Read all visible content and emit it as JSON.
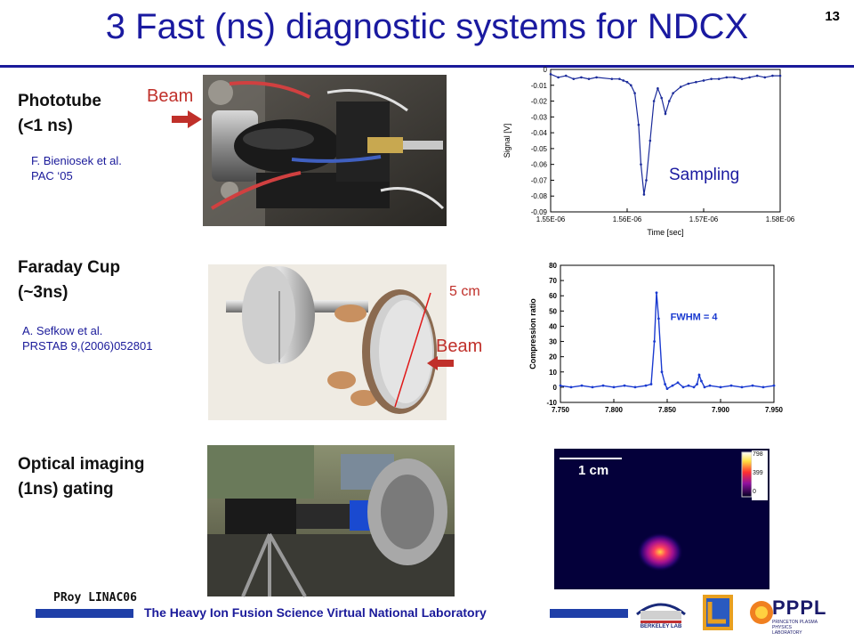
{
  "slide": {
    "title": "3 Fast (ns) diagnostic systems for NDCX",
    "page_number": "13"
  },
  "sections": {
    "phototube": {
      "label_line1": "Phototube",
      "label_line2": "(<1 ns)",
      "citation_line1": "F. Bieniosek et al.",
      "citation_line2": "PAC ‘05",
      "beam_label": "Beam",
      "sampling_label": "Sampling"
    },
    "faraday": {
      "label_line1": "Faraday Cup",
      "label_line2": "(~3ns)",
      "citation_line1": "A. Sefkow et al.",
      "citation_line2": "PRSTAB 9,(2006)052801",
      "size_label": "5 cm",
      "beam_label": "Beam"
    },
    "optical": {
      "label_line1": "Optical imaging",
      "label_line2": "(1ns) gating",
      "scale_label": "1 cm",
      "colorbar_max": "798",
      "colorbar_mid": "399",
      "colorbar_min": "0"
    }
  },
  "footer": {
    "author": "PRoy LINAC06",
    "lab_text": "The Heavy Ion Fusion Science Virtual National Laboratory",
    "logo1": "BERKELEY LAB",
    "logo3_big": "PPPL",
    "logo3_small": "PRINCETON PLASMA PHYSICS LABORATORY"
  },
  "chart_data": [
    {
      "type": "line",
      "title": "",
      "xlabel": "Time [sec]",
      "ylabel": "Signal [V]",
      "xlim": [
        1.55e-06,
        1.58e-06
      ],
      "ylim": [
        -0.09,
        0
      ],
      "xticks": [
        "1.55E-06",
        "1.56E-06",
        "1.57E-06",
        "1.58E-06"
      ],
      "yticks": [
        "0",
        "-0.01",
        "-0.02",
        "-0.03",
        "-0.04",
        "-0.05",
        "-0.06",
        "-0.07",
        "-0.08",
        "-0.09"
      ],
      "x": [
        1.55e-06,
        1.551e-06,
        1.552e-06,
        1.553e-06,
        1.554e-06,
        1.555e-06,
        1.556e-06,
        1.558e-06,
        1.559e-06,
        1.5595e-06,
        1.56e-06,
        1.5605e-06,
        1.561e-06,
        1.5615e-06,
        1.5618e-06,
        1.5622e-06,
        1.5625e-06,
        1.563e-06,
        1.5635e-06,
        1.564e-06,
        1.5645e-06,
        1.565e-06,
        1.5655e-06,
        1.566e-06,
        1.567e-06,
        1.568e-06,
        1.569e-06,
        1.57e-06,
        1.571e-06,
        1.572e-06,
        1.573e-06,
        1.574e-06,
        1.575e-06,
        1.576e-06,
        1.577e-06,
        1.578e-06,
        1.579e-06,
        1.58e-06
      ],
      "y": [
        -0.003,
        -0.005,
        -0.004,
        -0.006,
        -0.005,
        -0.006,
        -0.005,
        -0.006,
        -0.006,
        -0.007,
        -0.008,
        -0.01,
        -0.015,
        -0.035,
        -0.06,
        -0.079,
        -0.07,
        -0.045,
        -0.02,
        -0.012,
        -0.018,
        -0.028,
        -0.02,
        -0.015,
        -0.011,
        -0.009,
        -0.008,
        -0.007,
        -0.006,
        -0.006,
        -0.005,
        -0.005,
        -0.006,
        -0.005,
        -0.004,
        -0.005,
        -0.004,
        -0.004
      ]
    },
    {
      "type": "line",
      "title": "",
      "xlabel": "",
      "ylabel": "Compression ratio",
      "xlim": [
        7.75,
        7.95
      ],
      "ylim": [
        -10,
        80
      ],
      "xticks": [
        "7.750",
        "7.800",
        "7.850",
        "7.900",
        "7.950"
      ],
      "yticks": [
        "80",
        "70",
        "60",
        "50",
        "40",
        "30",
        "20",
        "10",
        "0",
        "-10"
      ],
      "annotation": "FWHM = 4",
      "x": [
        7.75,
        7.76,
        7.77,
        7.78,
        7.79,
        7.8,
        7.81,
        7.82,
        7.83,
        7.835,
        7.838,
        7.84,
        7.842,
        7.845,
        7.848,
        7.85,
        7.855,
        7.86,
        7.865,
        7.87,
        7.875,
        7.878,
        7.88,
        7.882,
        7.885,
        7.89,
        7.9,
        7.91,
        7.92,
        7.93,
        7.94,
        7.95
      ],
      "y": [
        1,
        0,
        1,
        0,
        1,
        0,
        1,
        0,
        1,
        2,
        30,
        62,
        45,
        10,
        2,
        -1,
        1,
        3,
        0,
        1,
        0,
        2,
        8,
        4,
        0,
        1,
        0,
        1,
        0,
        1,
        0,
        1
      ]
    }
  ],
  "colors": {
    "title": "#1a1aa0",
    "beam_red": "#c0302a",
    "footer_bar": "#1f3fa8",
    "plot_line": "#1a2a9a",
    "plot_line2": "#1a3ad0"
  }
}
